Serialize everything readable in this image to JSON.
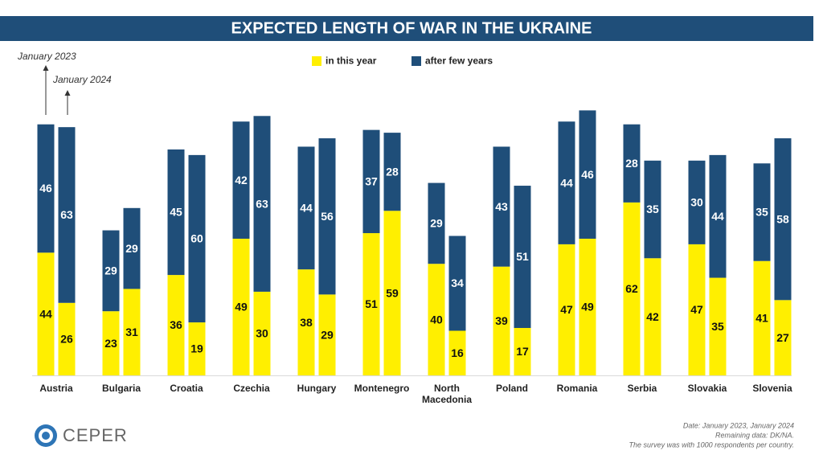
{
  "chart_data": {
    "type": "grouped_stacked_bar",
    "title": "EXPECTED LENGTH OF WAR IN THE UKRAINE",
    "annotations": [
      "January 2023",
      "January 2024"
    ],
    "categories": [
      "Austria",
      "Bulgaria",
      "Croatia",
      "Czechia",
      "Hungary",
      "Montenegro",
      "North Macedonia",
      "Poland",
      "Romania",
      "Serbia",
      "Slovakia",
      "Slovenia"
    ],
    "series": [
      {
        "name": "in this year",
        "color": "#ffef00",
        "values": [
          [
            44,
            26
          ],
          [
            23,
            31
          ],
          [
            36,
            19
          ],
          [
            49,
            30
          ],
          [
            38,
            29
          ],
          [
            51,
            59
          ],
          [
            40,
            16
          ],
          [
            39,
            17
          ],
          [
            47,
            49
          ],
          [
            62,
            42
          ],
          [
            47,
            35
          ],
          [
            41,
            27
          ]
        ]
      },
      {
        "name": "after few years",
        "color": "#1f4e79",
        "values": [
          [
            46,
            63
          ],
          [
            29,
            29
          ],
          [
            45,
            60
          ],
          [
            42,
            63
          ],
          [
            44,
            56
          ],
          [
            37,
            28
          ],
          [
            29,
            34
          ],
          [
            43,
            51
          ],
          [
            44,
            46
          ],
          [
            28,
            35
          ],
          [
            30,
            44
          ],
          [
            35,
            58
          ]
        ]
      }
    ]
  },
  "footer": {
    "logo": "CEPER",
    "notes": [
      "Date: January 2023, January 2024",
      "Remaining data: DK/NA.",
      "The survey was with  1000 respondents per country."
    ]
  }
}
